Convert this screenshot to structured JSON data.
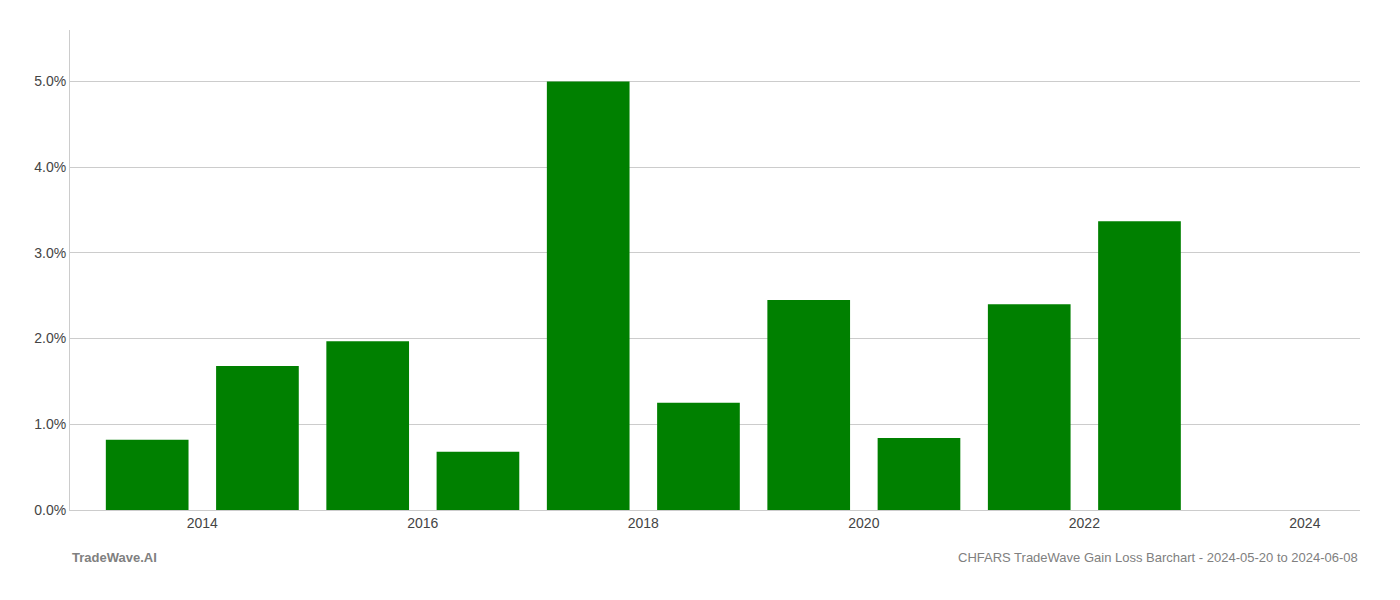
{
  "chart_data": {
    "type": "bar",
    "x": [
      2013.5,
      2014.5,
      2015.5,
      2016.5,
      2017.5,
      2018.5,
      2019.5,
      2020.5,
      2021.5,
      2022.5
    ],
    "values": [
      0.0082,
      0.0168,
      0.0197,
      0.0068,
      0.05,
      0.0125,
      0.0245,
      0.0084,
      0.024,
      0.0337
    ],
    "color": "#008000",
    "xlim": [
      2012.8,
      2024.5
    ],
    "xticks": [
      2014,
      2016,
      2018,
      2020,
      2022,
      2024
    ],
    "ylim": [
      0,
      0.056
    ],
    "yticks": [
      {
        "value": 0.0,
        "label": "0.0%"
      },
      {
        "value": 0.01,
        "label": "1.0%"
      },
      {
        "value": 0.02,
        "label": "2.0%"
      },
      {
        "value": 0.03,
        "label": "3.0%"
      },
      {
        "value": 0.04,
        "label": "4.0%"
      },
      {
        "value": 0.05,
        "label": "5.0%"
      }
    ],
    "grid": true,
    "annotations": [
      "TradeWave.AI",
      "CHFARS TradeWave Gain Loss Barchart - 2024-05-20 to 2024-06-08"
    ]
  }
}
